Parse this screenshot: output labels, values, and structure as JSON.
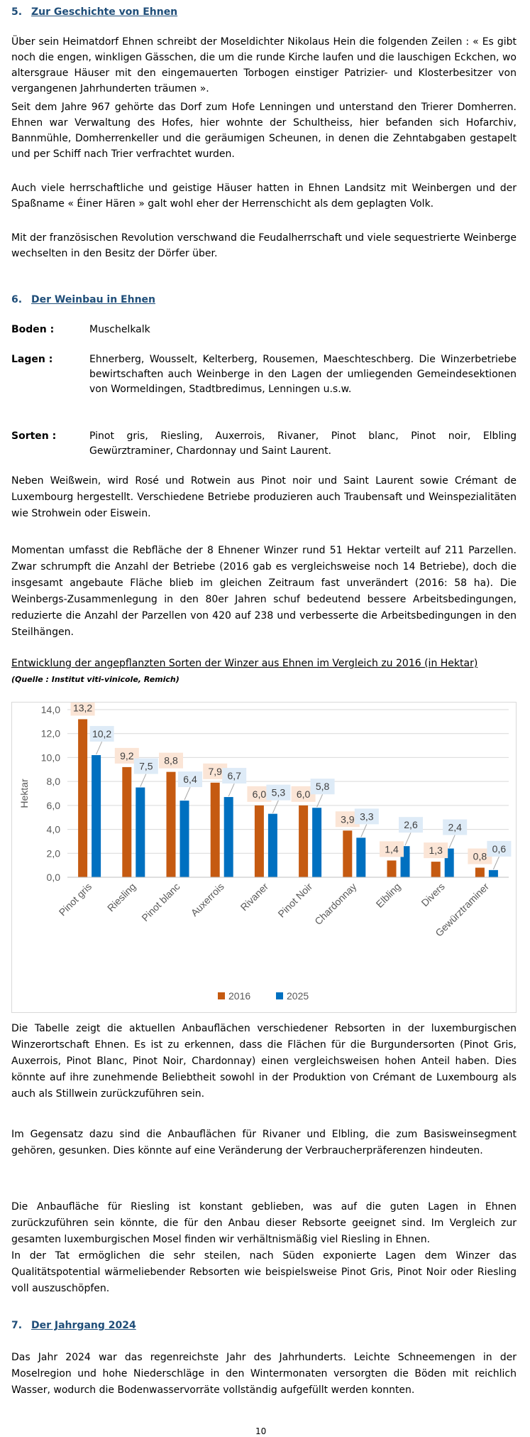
{
  "section5": {
    "number": "5.",
    "title": "Zur Geschichte von Ehnen",
    "paragraphs": [
      "Über sein Heimatdorf Ehnen schreibt der Moseldichter Nikolaus Hein die folgenden Zeilen : « Es gibt noch die engen, winkligen Gässchen, die um die runde Kirche laufen und die lauschigen Eckchen, wo altersgraue Häuser mit den eingemauerten Torbogen einstiger Patrizier- und Klosterbesitzer von vergangenen Jahrhunderten träumen ».",
      "Seit dem Jahre 967 gehörte das Dorf zum Hofe Lenningen und unterstand den Trierer Domherren. Ehnen war Verwaltung des Hofes, hier wohnte der Schultheiss, hier befanden sich Hofarchiv, Bannmühle, Domherrenkeller und die geräumigen Scheunen, in denen die Zehntabgaben gestapelt und per Schiff nach Trier verfrachtet wurden.",
      "Auch viele herrschaftliche und geistige Häuser hatten in Ehnen Landsitz mit Weinbergen und der Spaßname « Éiner Hären » galt wohl eher der Herrenschicht als dem geplagten Volk.",
      "Mit der französischen Revolution verschwand die Feudalherrschaft und viele sequestrierte Weinberge wechselten in den Besitz der Dörfer über."
    ]
  },
  "section6": {
    "number": "6.",
    "title": "Der Weinbau in Ehnen",
    "definitions": [
      {
        "term": "Boden :",
        "value": "Muschelkalk"
      },
      {
        "term": "Lagen :",
        "value": "Ehnerberg, Wousselt, Kelterberg, Rousemen, Maeschteschberg. Die Winzerbetriebe bewirtschaften auch Weinberge in den Lagen der umliegenden Gemeindesektionen von Wormeldingen, Stadtbredimus, Lenningen u.s.w."
      },
      {
        "term": "Sorten :",
        "value": "Pinot gris, Riesling, Auxerrois, Rivaner, Pinot blanc, Pinot noir, Elbling Gewürztraminer, Chardonnay und Saint Laurent."
      }
    ],
    "paragraphs": [
      "Neben Weißwein, wird Rosé und Rotwein aus Pinot noir und Saint Laurent sowie Crémant de Luxembourg hergestellt. Verschiedene Betriebe produzieren auch Traubensaft und Weinspezialitäten wie Strohwein oder Eiswein.",
      "Momentan umfasst die Rebfläche der 8 Ehnener Winzer rund 51 Hektar verteilt auf 211 Parzellen. Zwar schrumpft die Anzahl der Betriebe (2016 gab es vergleichsweise noch 14 Betriebe), doch die insgesamt angebaute Fläche blieb im gleichen Zeitraum fast unverändert (2016: 58 ha). Die Weinbergs-Zusammenlegung in den 80er Jahren schuf bedeutend bessere Arbeitsbedingungen, reduzierte die Anzahl der Parzellen von 420 auf 238 und verbesserte die Arbeitsbedingungen in den Steilhängen."
    ],
    "chart_caption": "Entwicklung der angepflanzten Sorten der Winzer aus Ehnen im Vergleich zu 2016 (in Hektar)",
    "chart_source": "(Quelle : Institut viti-vinicole, Remich)",
    "after_chart_paragraphs": [
      "Die Tabelle zeigt die aktuellen Anbauflächen verschiedener Rebsorten in der luxemburgischen Winzerortschaft Ehnen. Es ist zu erkennen, dass die Flächen für die Burgundersorten (Pinot Gris, Auxerrois, Pinot Blanc, Pinot Noir, Chardonnay) einen vergleichsweisen hohen Anteil haben. Dies könnte auf ihre zunehmende Beliebtheit sowohl in der Produktion von Crémant de Luxembourg als auch als Stillwein zurückzuführen sein.",
      "Im Gegensatz dazu sind die Anbauflächen für Rivaner und Elbling, die zum Basisweinsegment gehören, gesunken. Dies könnte auf eine Veränderung der Verbraucherpräferenzen hindeuten.",
      "Die Anbaufläche für Riesling ist konstant geblieben, was auf die guten Lagen in Ehnen zurückzuführen sein könnte, die für den Anbau dieser Rebsorte geeignet sind. Im Vergleich zur gesamten luxemburgischen Mosel finden wir verhältnismäßig viel Riesling in Ehnen.",
      "In der Tat ermöglichen die sehr steilen, nach Süden exponierte Lagen dem Winzer das Qualitätspotential wärmeliebender Rebsorten wie beispielsweise Pinot Gris, Pinot Noir oder Riesling voll auszuschöpfen."
    ]
  },
  "section7": {
    "number": "7.",
    "title": "Der Jahrgang 2024",
    "paragraphs": [
      "Das Jahr 2024 war das regenreichste Jahr des Jahrhunderts. Leichte Schneemengen in der Moselregion und hohe Niederschläge in den Wintermonaten versorgten die Böden mit reichlich Wasser, wodurch die Bodenwasservorräte vollständig aufgefüllt werden konnten."
    ]
  },
  "page_number": "10",
  "colors": {
    "heading": "#1F4E79",
    "series_2016": "#C55A11",
    "series_2025": "#0070C0",
    "label_bg_2016": "#FBE5D6",
    "label_bg_2025": "#DEEBF7"
  },
  "chart_data": {
    "type": "bar",
    "categories": [
      "Pinot gris",
      "Riesling",
      "Pinot blanc",
      "Auxerrois",
      "Rivaner",
      "Pinot Noir",
      "Chardonnay",
      "Elbling",
      "Divers",
      "Gewürztraminer"
    ],
    "series": [
      {
        "name": "2016",
        "values": [
          13.2,
          9.2,
          8.8,
          7.9,
          6.0,
          6.0,
          3.9,
          1.4,
          1.3,
          0.8
        ],
        "labels": [
          "13,2",
          "9,2",
          "8,8",
          "7,9",
          "6,0",
          "6,0",
          "3,9",
          "1,4",
          "1,3",
          "0,8"
        ]
      },
      {
        "name": "2025",
        "values": [
          10.2,
          7.5,
          6.4,
          6.7,
          5.3,
          5.8,
          3.3,
          2.6,
          2.4,
          0.6
        ],
        "labels": [
          "10,2",
          "7,5",
          "6,4",
          "6,7",
          "5,3",
          "5,8",
          "3,3",
          "2,6",
          "2,4",
          "0,6"
        ]
      }
    ],
    "ylabel": "Hektar",
    "xlabel": "",
    "ylim": [
      0,
      14
    ],
    "yticks": [
      "0,0",
      "2,0",
      "4,0",
      "6,0",
      "8,0",
      "10,0",
      "12,0",
      "14,0"
    ],
    "grid": true,
    "legend": "bottom"
  }
}
